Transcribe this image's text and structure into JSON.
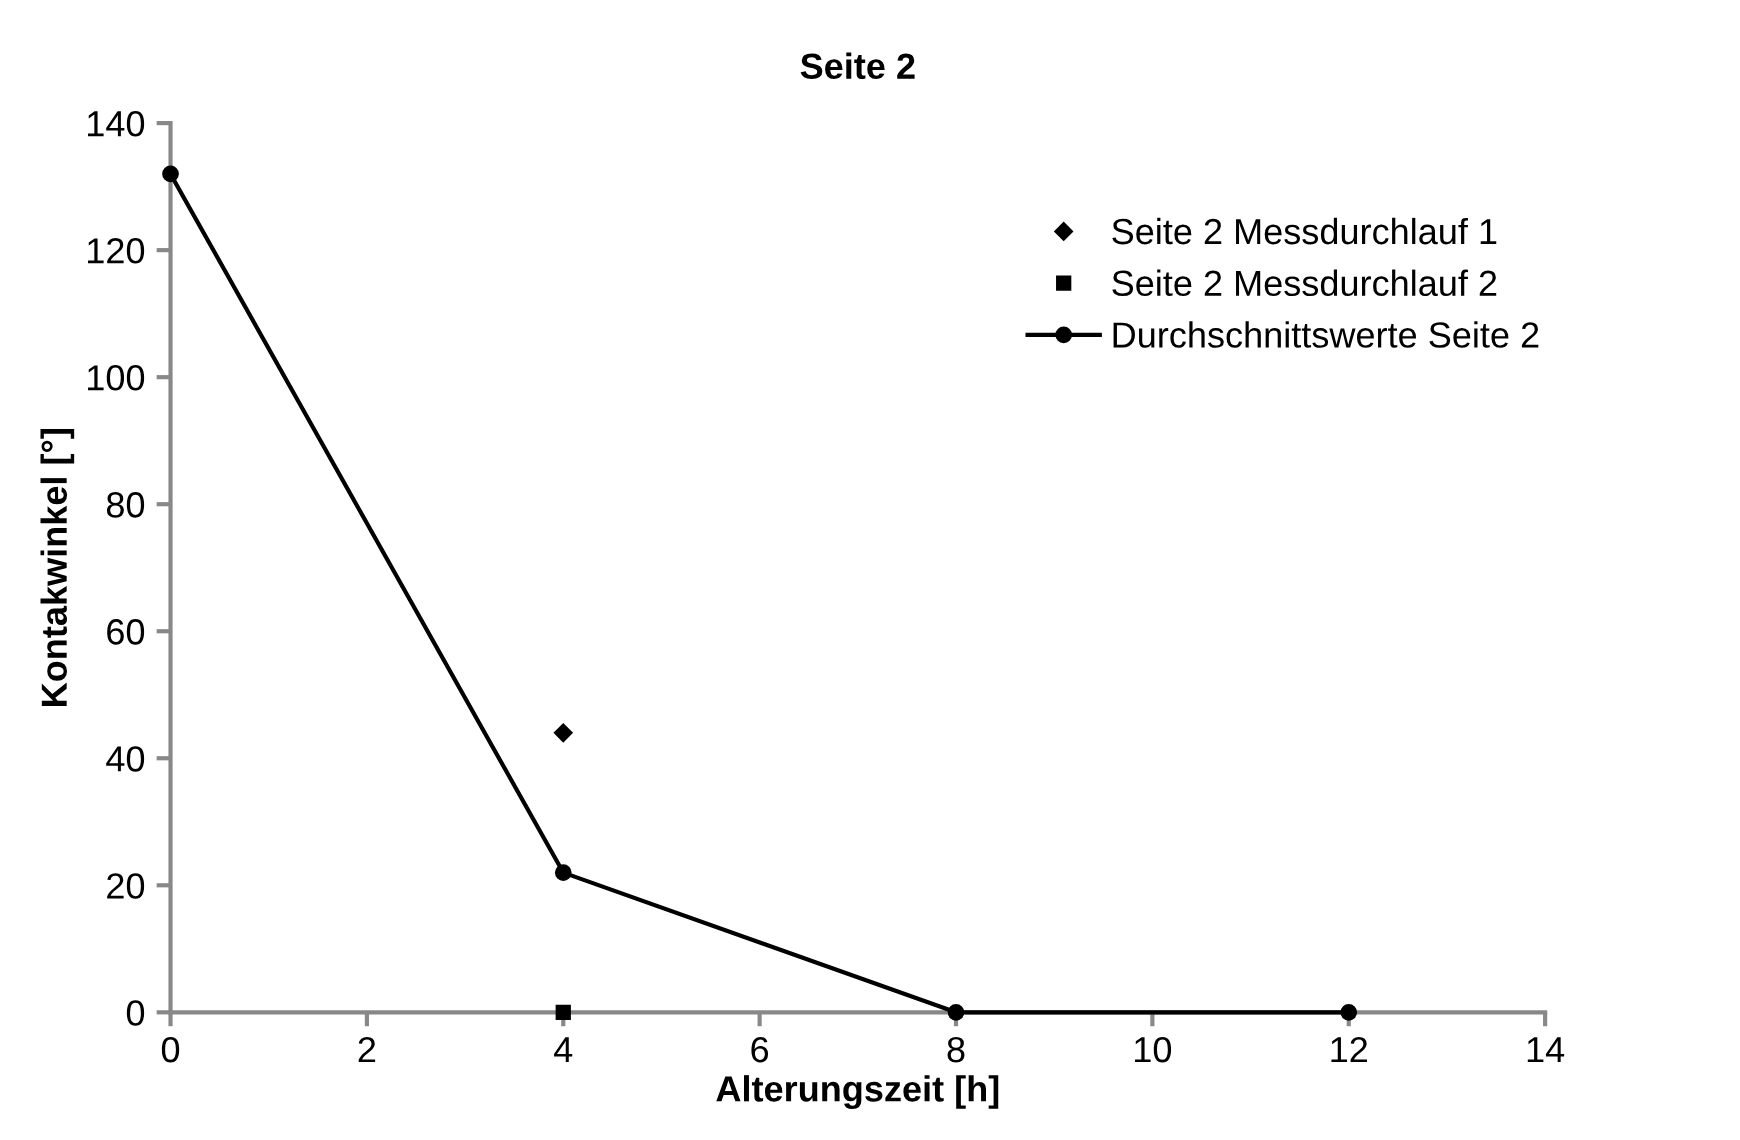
{
  "chart_data": {
    "type": "scatter",
    "title": "Seite 2",
    "xlabel": "Alterungszeit [h]",
    "ylabel": "Kontakwinkel [°]",
    "series": [
      {
        "name": "Seite 2 Messdurchlauf 1",
        "color": "#000000",
        "x": [
          4
        ],
        "values": [
          44
        ],
        "marker": "diamond"
      },
      {
        "name": "Seite 2 Messdurchlauf 2",
        "color": "#000000",
        "x": [
          4
        ],
        "values": [
          0
        ],
        "marker": "square"
      },
      {
        "name": "Durchschnittswerte Seite 2",
        "type": "line",
        "color": "#000000",
        "x": [
          0,
          4,
          8,
          12
        ],
        "values": [
          132,
          22,
          0,
          0
        ],
        "marker": "circle",
        "line_style": "solid"
      }
    ],
    "xlim": [
      0,
      14
    ],
    "xticks": [
      0,
      2,
      4,
      6,
      8,
      10,
      12,
      14
    ],
    "ylim": [
      0,
      140
    ],
    "yticks": [
      0,
      20,
      40,
      60,
      80,
      100,
      120,
      140
    ],
    "grid": false,
    "legend": "top right"
  }
}
